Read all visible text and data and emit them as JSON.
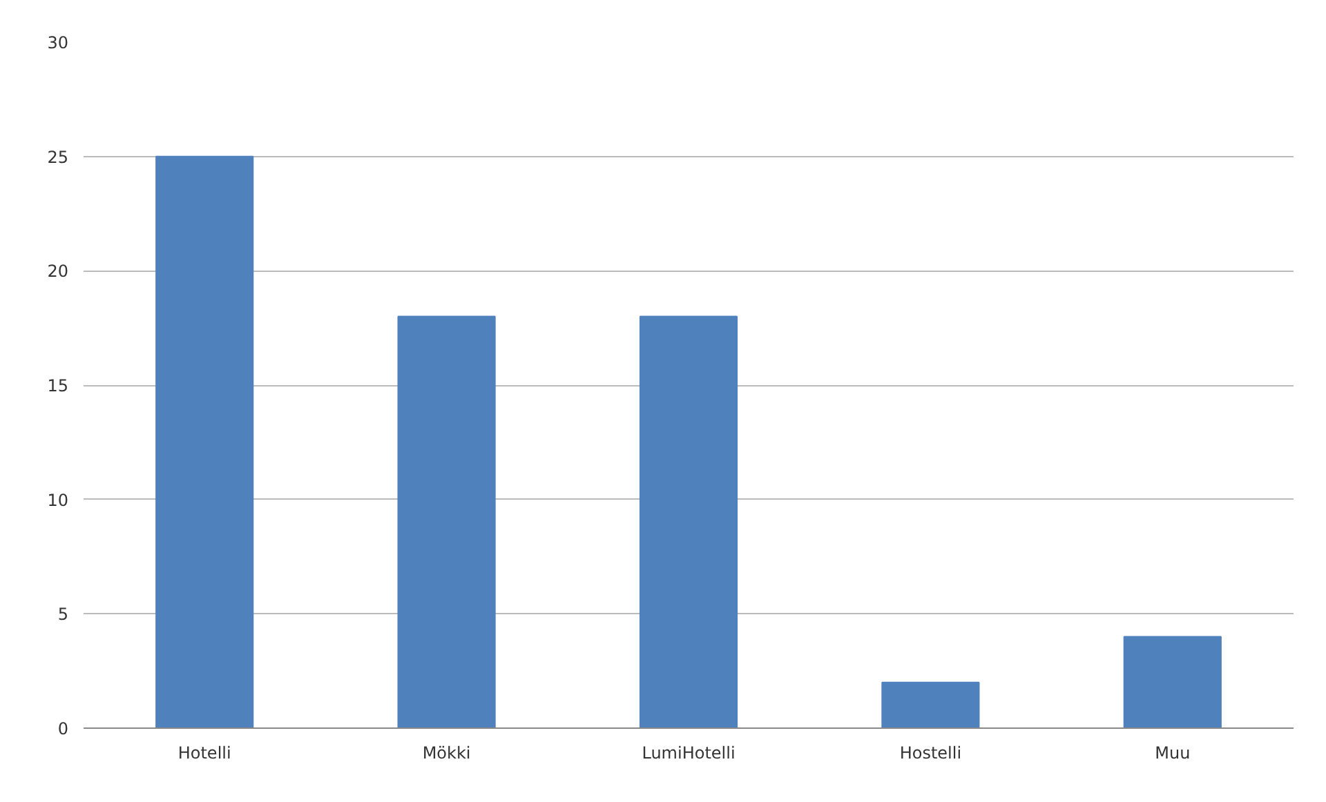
{
  "chart_data": {
    "type": "bar",
    "categories": [
      "Hotelli",
      "Mökki",
      "LumiHotelli",
      "Hostelli",
      "Muu"
    ],
    "values": [
      25,
      18,
      18,
      2,
      4
    ],
    "color": "#4f81bd",
    "ylim": [
      0,
      30
    ],
    "yticks": [
      0,
      5,
      10,
      15,
      20,
      25,
      30
    ],
    "grid": "y"
  }
}
